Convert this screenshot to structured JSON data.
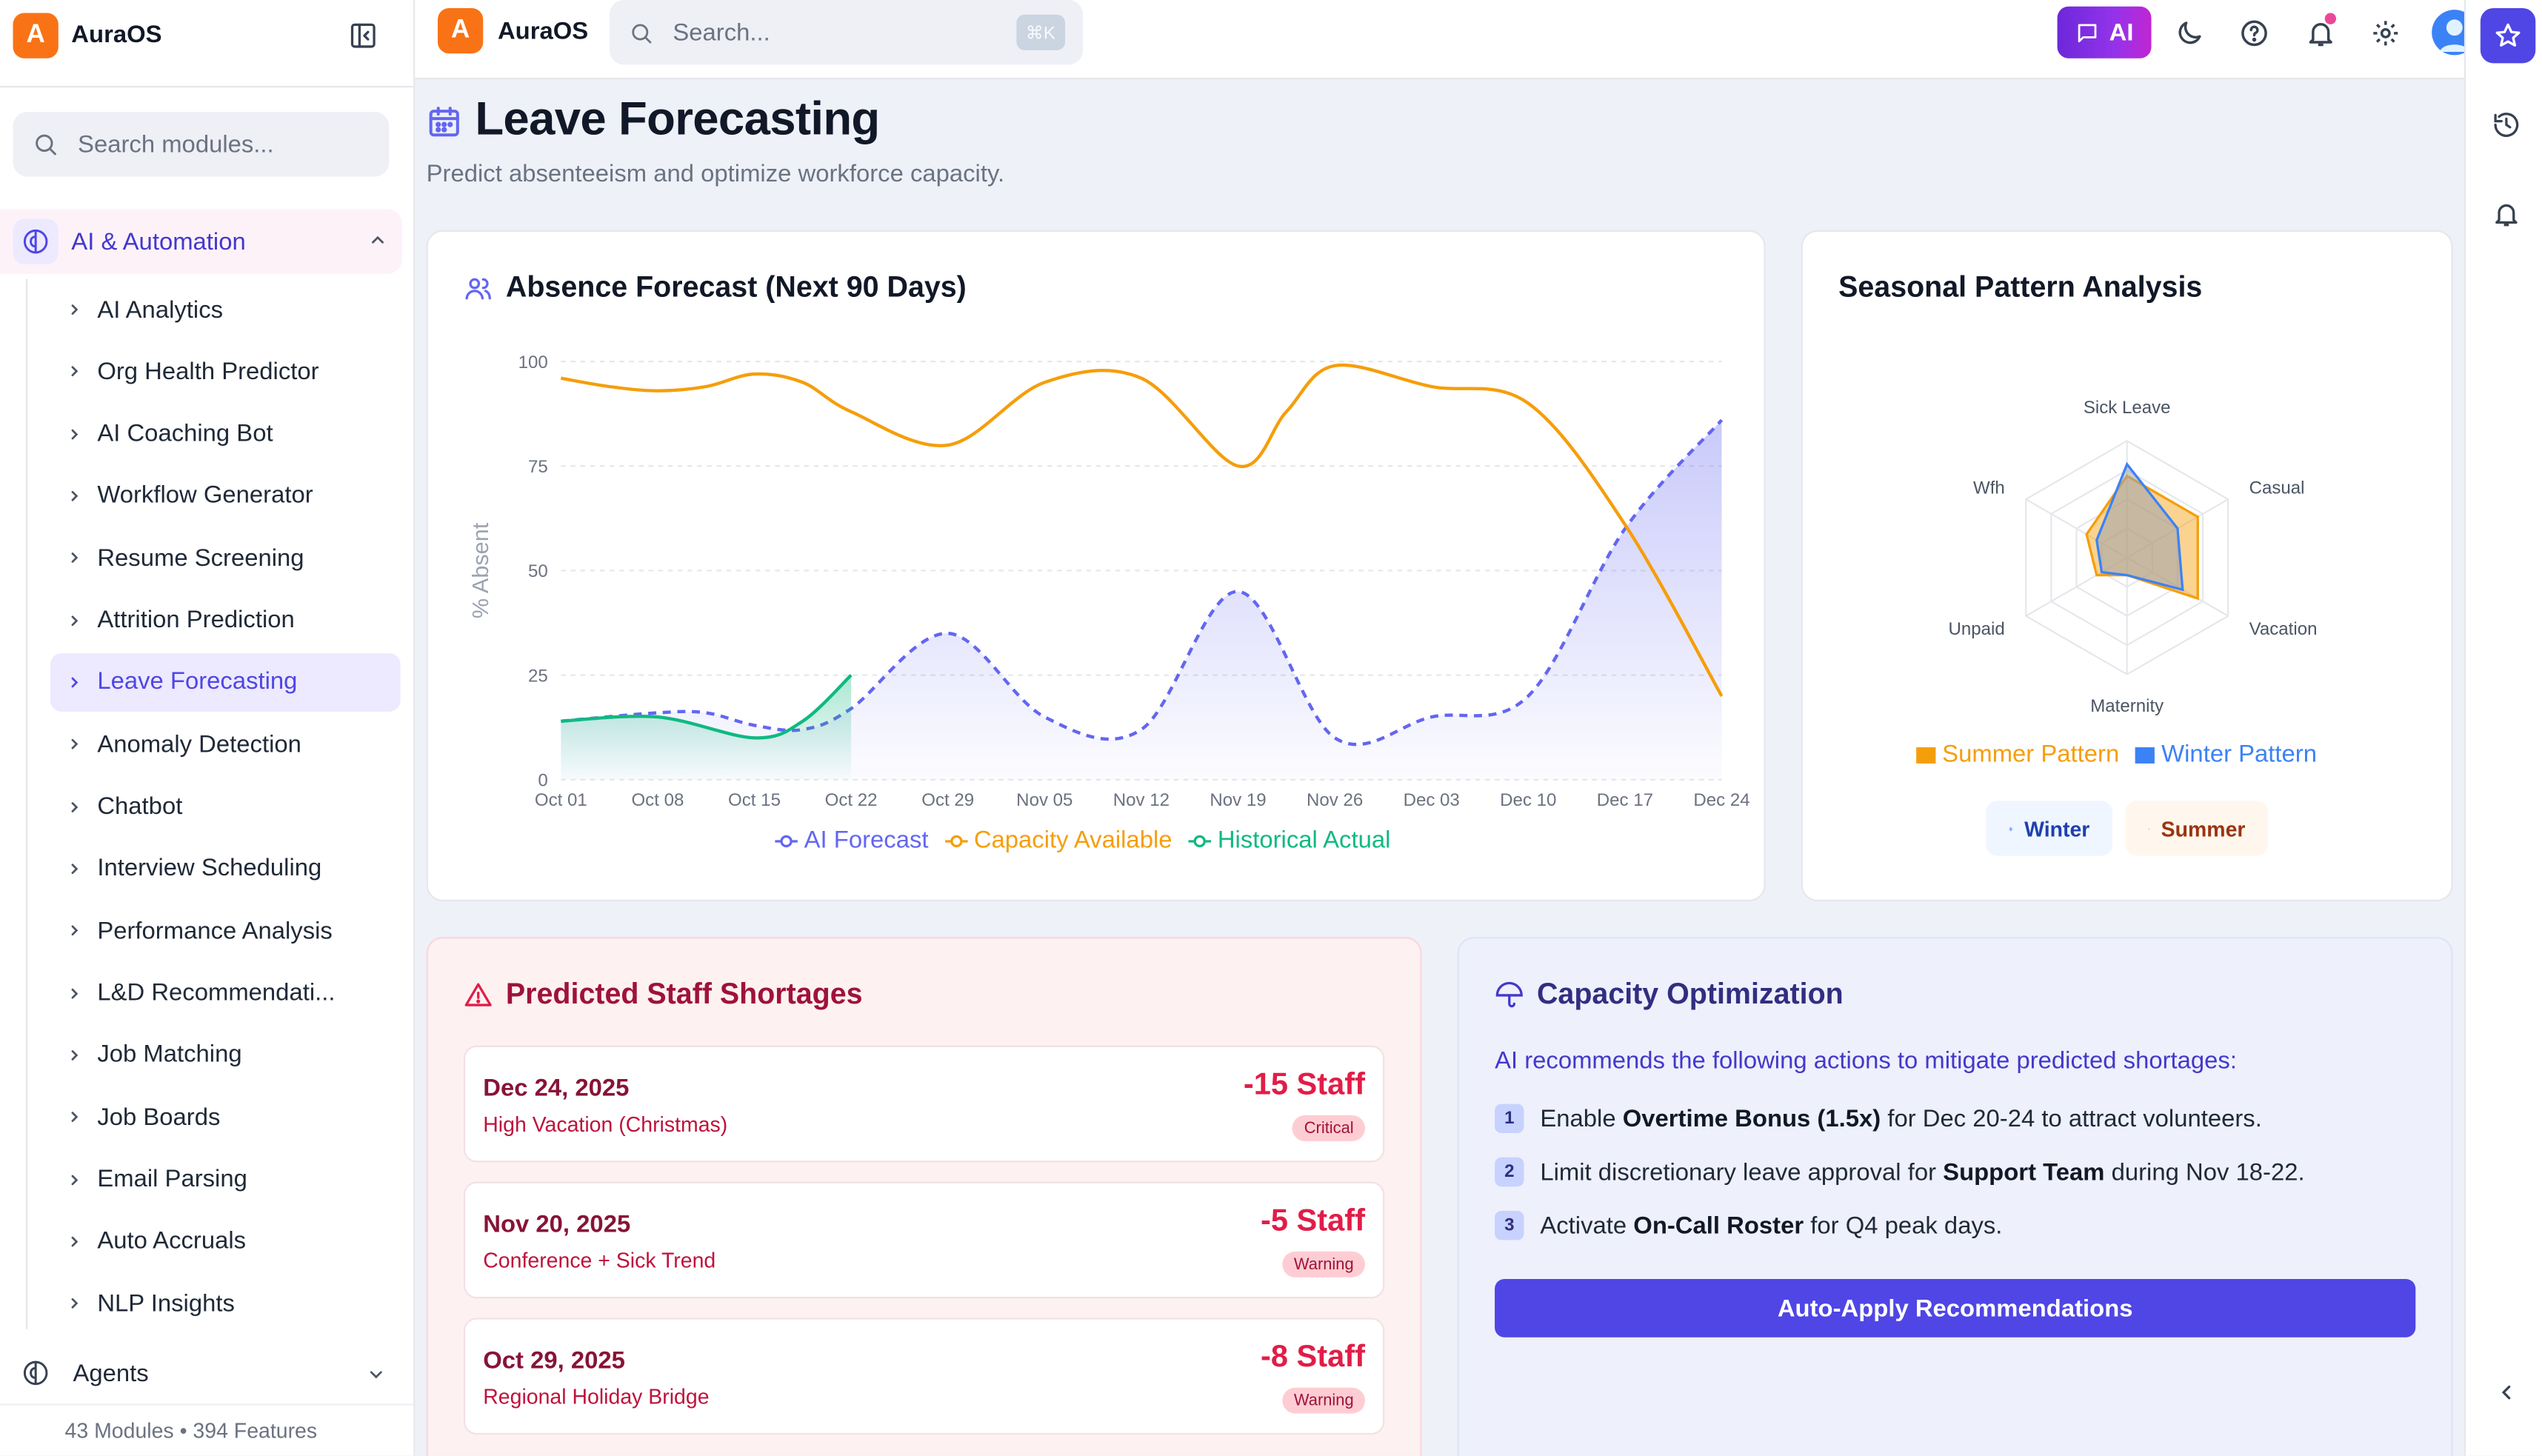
{
  "app": {
    "name": "AuraOS",
    "logo_letter": "A"
  },
  "sidebar": {
    "search_placeholder": "Search modules...",
    "group": {
      "label": "AI & Automation"
    },
    "items": [
      {
        "label": "AI Analytics"
      },
      {
        "label": "Org Health Predictor"
      },
      {
        "label": "AI Coaching Bot"
      },
      {
        "label": "Workflow Generator"
      },
      {
        "label": "Resume Screening"
      },
      {
        "label": "Attrition Prediction"
      },
      {
        "label": "Leave Forecasting",
        "active": true
      },
      {
        "label": "Anomaly Detection"
      },
      {
        "label": "Chatbot"
      },
      {
        "label": "Interview Scheduling"
      },
      {
        "label": "Performance Analysis"
      },
      {
        "label": "L&D Recommendati..."
      },
      {
        "label": "Job Matching"
      },
      {
        "label": "Job Boards"
      },
      {
        "label": "Email Parsing"
      },
      {
        "label": "Auto Accruals"
      },
      {
        "label": "NLP Insights"
      }
    ],
    "next_group": {
      "label": "Agents"
    },
    "footer": "43 Modules • 394 Features"
  },
  "topbar": {
    "search_placeholder": "Search...",
    "shortcut": "⌘K",
    "ai_label": "AI"
  },
  "page": {
    "title": "Leave Forecasting",
    "subtitle": "Predict absenteeism and optimize workforce capacity."
  },
  "colors": {
    "forecast": "#6366f1",
    "capacity": "#f59e0b",
    "historical": "#10b981",
    "primary": "#4f46e5",
    "danger": "#e11d48"
  },
  "chart_data": [
    {
      "type": "line",
      "title": "Absence Forecast (Next 90 Days)",
      "ylabel": "% Absent",
      "xlabel": "",
      "ylim": [
        0,
        100
      ],
      "yticks": [
        0,
        25,
        50,
        75,
        100
      ],
      "x": [
        "Oct 01",
        "Oct 08",
        "Oct 15",
        "Oct 22",
        "Oct 29",
        "Nov 05",
        "Nov 12",
        "Nov 19",
        "Nov 26",
        "Dec 03",
        "Dec 10",
        "Dec 17",
        "Dec 24"
      ],
      "grid": true,
      "legend_position": "bottom",
      "series": [
        {
          "name": "AI Forecast",
          "style": "dashed-area",
          "x": [
            0,
            1,
            1.5,
            2,
            2.5,
            3,
            4,
            5,
            6,
            7,
            8,
            9,
            10,
            11,
            12
          ],
          "values": [
            14,
            16,
            16,
            13,
            12,
            17,
            35,
            15,
            12,
            45,
            10,
            15,
            20,
            60,
            86
          ]
        },
        {
          "name": "Capacity Available",
          "style": "solid",
          "x": [
            0,
            0.5,
            1,
            1.5,
            2,
            2.5,
            3,
            4,
            5,
            6,
            7,
            7.5,
            8,
            9,
            10,
            11,
            12
          ],
          "values": [
            96,
            94,
            93,
            94,
            97,
            95,
            88,
            80,
            95,
            96,
            75,
            88,
            99,
            94,
            90,
            61,
            20
          ]
        },
        {
          "name": "Historical Actual",
          "style": "solid-area",
          "x": [
            0,
            1,
            2,
            2.5,
            3
          ],
          "values": [
            14,
            15,
            10,
            14,
            25
          ]
        }
      ]
    },
    {
      "type": "radar",
      "title": "Seasonal Pattern Analysis",
      "axes": [
        "Sick Leave",
        "Casual",
        "Vacation",
        "Maternity",
        "Unpaid",
        "Wfh"
      ],
      "rmax": 100,
      "legend_position": "bottom",
      "series": [
        {
          "name": "Summer Pattern",
          "values": [
            70,
            70,
            70,
            15,
            30,
            40
          ]
        },
        {
          "name": "Winter Pattern",
          "values": [
            80,
            50,
            55,
            15,
            25,
            30
          ]
        }
      ]
    }
  ],
  "season_buttons": [
    {
      "label": "Winter"
    },
    {
      "label": "Summer"
    }
  ],
  "shortages": {
    "title": "Predicted Staff Shortages",
    "rows": [
      {
        "date": "Dec 24, 2025",
        "reason": "High Vacation (Christmas)",
        "delta": "-15 Staff",
        "badge": "Critical"
      },
      {
        "date": "Nov 20, 2025",
        "reason": "Conference + Sick Trend",
        "delta": "-5 Staff",
        "badge": "Warning"
      },
      {
        "date": "Oct 29, 2025",
        "reason": "Regional Holiday Bridge",
        "delta": "-8 Staff",
        "badge": "Warning"
      }
    ]
  },
  "capacity": {
    "title": "Capacity Optimization",
    "intro": "AI recommends the following actions to mitigate predicted shortages:",
    "recommendations": [
      {
        "num": "1",
        "pre": "Enable ",
        "bold": "Overtime Bonus (1.5x)",
        "post": " for Dec 20-24 to attract volunteers."
      },
      {
        "num": "2",
        "pre": "Limit discretionary leave approval for ",
        "bold": "Support Team",
        "post": " during Nov 18-22."
      },
      {
        "num": "3",
        "pre": "Activate ",
        "bold": "On-Call Roster",
        "post": " for Q4 peak days."
      }
    ],
    "button": "Auto-Apply Recommendations"
  }
}
